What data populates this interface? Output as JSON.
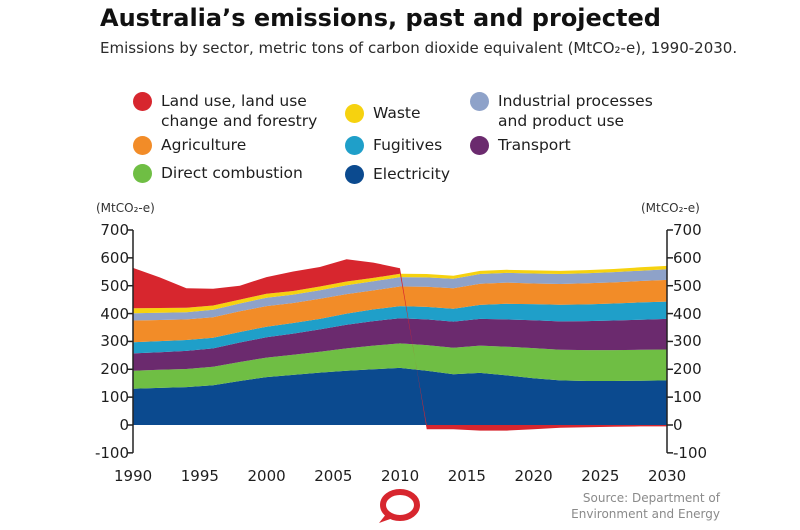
{
  "title": "Australia’s emissions, past and projected",
  "subtitle": "Emissions by sector, metric tons of carbon dioxide equivalent (MtCO₂-e), 1990-2030.",
  "source": "Source: Department of Environment and Energy",
  "unit_left": "(MtCO₂-e)",
  "unit_right": "(MtCO₂-e)",
  "logo_icon": "speech-bubble-logo-icon",
  "chart_data": {
    "type": "area",
    "stacked": true,
    "x_ticks": [
      1990,
      1995,
      2000,
      2005,
      2010,
      2015,
      2020,
      2025,
      2030
    ],
    "y_ticks": [
      -100,
      0,
      100,
      200,
      300,
      400,
      500,
      600,
      700
    ],
    "xlim": [
      1990,
      2030
    ],
    "ylim": [
      -100,
      700
    ],
    "grid": false,
    "legend_position": "top",
    "years": [
      1990,
      1992,
      1994,
      1996,
      1998,
      2000,
      2002,
      2004,
      2006,
      2008,
      2010,
      2012,
      2014,
      2016,
      2018,
      2020,
      2022,
      2024,
      2026,
      2028,
      2030
    ],
    "series": [
      {
        "name": "Electricity",
        "color": "#0b4a8f",
        "values": [
          130,
          133,
          136,
          143,
          158,
          172,
          180,
          188,
          195,
          200,
          205,
          195,
          182,
          187,
          178,
          168,
          160,
          158,
          158,
          159,
          160
        ]
      },
      {
        "name": "Direct combustion",
        "color": "#6fbe44",
        "values": [
          65,
          65,
          65,
          66,
          68,
          70,
          72,
          75,
          80,
          85,
          88,
          92,
          95,
          98,
          103,
          108,
          110,
          111,
          111,
          111,
          111
        ]
      },
      {
        "name": "Transport",
        "color": "#6b2a6e",
        "values": [
          62,
          63,
          65,
          66,
          70,
          73,
          76,
          80,
          85,
          88,
          90,
          92,
          94,
          96,
          98,
          100,
          102,
          104,
          106,
          108,
          110
        ]
      },
      {
        "name": "Fugitives",
        "color": "#1f9fc9",
        "values": [
          40,
          40,
          39,
          38,
          38,
          38,
          38,
          38,
          40,
          42,
          44,
          45,
          46,
          50,
          56,
          58,
          60,
          60,
          61,
          62,
          62
        ]
      },
      {
        "name": "Agriculture",
        "color": "#f28c28",
        "values": [
          78,
          76,
          74,
          74,
          74,
          74,
          72,
          72,
          70,
          68,
          70,
          72,
          74,
          76,
          76,
          74,
          74,
          76,
          76,
          77,
          78
        ]
      },
      {
        "name": "Industrial processes and product use",
        "color": "#8ea2c9",
        "values": [
          26,
          26,
          26,
          27,
          28,
          30,
          30,
          31,
          32,
          33,
          34,
          34,
          34,
          35,
          35,
          36,
          36,
          36,
          37,
          37,
          38
        ]
      },
      {
        "name": "Waste",
        "color": "#f6d20f",
        "values": [
          18,
          17,
          16,
          15,
          14,
          14,
          13,
          13,
          13,
          12,
          12,
          12,
          11,
          11,
          11,
          11,
          11,
          11,
          11,
          12,
          12
        ]
      },
      {
        "name": "Land use, land use change and forestry",
        "color": "#d7262e",
        "values": [
          145,
          110,
          70,
          60,
          50,
          60,
          70,
          70,
          80,
          55,
          20,
          -15,
          -15,
          -20,
          -20,
          -15,
          -10,
          -8,
          -6,
          -5,
          -5
        ]
      }
    ]
  }
}
